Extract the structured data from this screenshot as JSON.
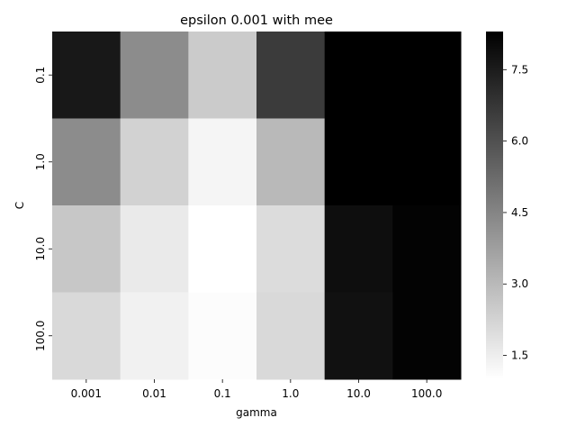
{
  "chart_data": {
    "type": "heatmap",
    "title": "epsilon 0.001 with mee",
    "xlabel": "gamma",
    "ylabel": "C",
    "x_categories": [
      "0.001",
      "0.01",
      "0.1",
      "1.0",
      "10.0",
      "100.0"
    ],
    "y_categories": [
      "0.1",
      "1.0",
      "10.0",
      "100.0"
    ],
    "values": [
      [
        7.6,
        4.3,
        2.5,
        6.6,
        8.3,
        8.3
      ],
      [
        4.3,
        2.3,
        1.3,
        3.0,
        8.3,
        8.3
      ],
      [
        2.6,
        1.6,
        1.0,
        2.0,
        7.9,
        8.2
      ],
      [
        2.1,
        1.4,
        1.1,
        2.1,
        7.8,
        8.2
      ]
    ],
    "colorbar": {
      "min": 1.0,
      "max": 8.3,
      "ticks": [
        "1.5",
        "3.0",
        "4.5",
        "6.0",
        "7.5"
      ],
      "colormap": "Greys",
      "low_color": "#ffffff",
      "high_color": "#000000"
    },
    "grid": false,
    "legend": "colorbar-right"
  }
}
